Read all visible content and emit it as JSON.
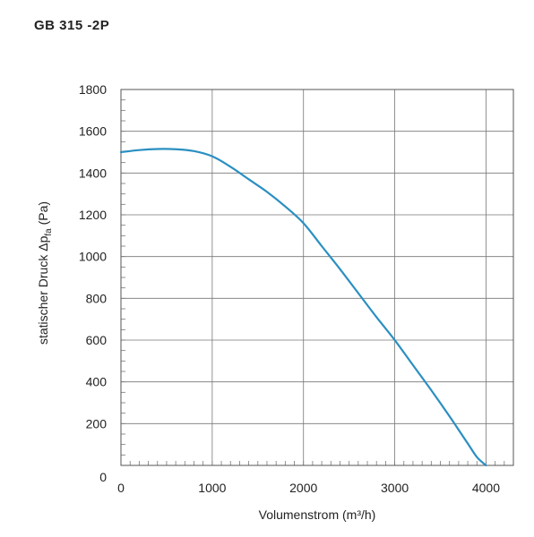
{
  "chart_data": {
    "type": "line",
    "title": "GB 315 -2P",
    "xlabel": "Volumenstrom (m³/h)",
    "ylabel": {
      "main": "statischer Druck Δp",
      "subscript": "fa",
      "unit": " (Pa)"
    },
    "xlim": [
      0,
      4300
    ],
    "ylim": [
      0,
      1800
    ],
    "x_ticks": [
      0,
      1000,
      2000,
      3000,
      4000
    ],
    "y_ticks": [
      0,
      200,
      400,
      600,
      800,
      1000,
      1200,
      1400,
      1600,
      1800
    ],
    "x_minor_step": 100,
    "y_minor_step": 50,
    "grid": true,
    "series": [
      {
        "color": "#2a8fc1",
        "x": [
          0,
          200,
          400,
          600,
          800,
          1000,
          1200,
          1400,
          1600,
          1800,
          2000,
          2200,
          2400,
          2600,
          2800,
          3000,
          3200,
          3400,
          3600,
          3800,
          3900,
          4000
        ],
        "y": [
          1500,
          1510,
          1515,
          1514,
          1505,
          1480,
          1430,
          1370,
          1310,
          1240,
          1160,
          1050,
          940,
          825,
          710,
          600,
          480,
          360,
          235,
          105,
          40,
          0
        ]
      }
    ]
  }
}
